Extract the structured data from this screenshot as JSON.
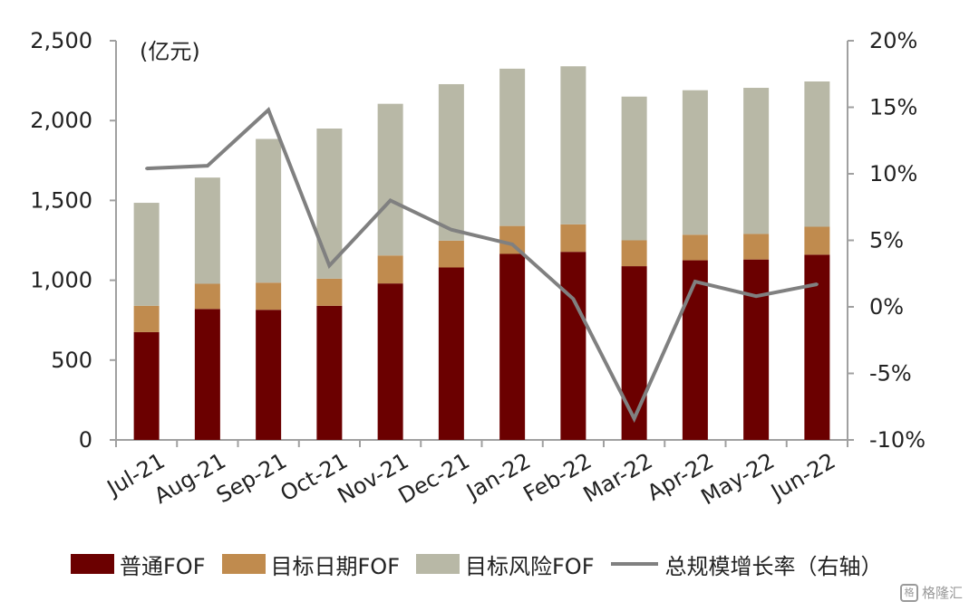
{
  "chart_data": {
    "type": "bar",
    "stacked": true,
    "unit_label": "(亿元)",
    "categories": [
      "Jul-21",
      "Aug-21",
      "Sep-21",
      "Oct-21",
      "Nov-21",
      "Dec-21",
      "Jan-22",
      "Feb-22",
      "Mar-22",
      "Apr-22",
      "May-22",
      "Jun-22"
    ],
    "series": [
      {
        "name": "普通FOF",
        "color": "#6b0000",
        "values": [
          675,
          820,
          815,
          840,
          980,
          1080,
          1165,
          1178,
          1088,
          1125,
          1130,
          1160
        ]
      },
      {
        "name": "目标日期FOF",
        "color": "#c08b4e",
        "values": [
          165,
          158,
          170,
          170,
          175,
          168,
          175,
          172,
          162,
          160,
          160,
          175
        ]
      },
      {
        "name": "目标风险FOF",
        "color": "#b8b8a6",
        "values": [
          645,
          665,
          900,
          940,
          950,
          980,
          985,
          990,
          900,
          905,
          915,
          910
        ]
      }
    ],
    "line_series": {
      "name": "总规模增长率（右轴）",
      "color": "#808080",
      "values": [
        10.4,
        10.6,
        14.8,
        3.1,
        8.0,
        5.8,
        4.7,
        0.6,
        -8.4,
        1.9,
        0.8,
        1.7
      ]
    },
    "left_axis": {
      "ylim": [
        0,
        2500
      ],
      "ticks": [
        0,
        500,
        1000,
        1500,
        2000,
        2500
      ],
      "tick_labels": [
        "0",
        "500",
        "1,000",
        "1,500",
        "2,000",
        "2,500"
      ]
    },
    "right_axis": {
      "ylim": [
        -10,
        20
      ],
      "ticks": [
        -10,
        -5,
        0,
        5,
        10,
        15,
        20
      ],
      "tick_labels": [
        "-10%",
        "-5%",
        "0%",
        "5%",
        "10%",
        "15%",
        "20%"
      ]
    },
    "legend_position": "bottom",
    "grid": false
  },
  "watermark": {
    "icon": "格",
    "text": "格隆汇"
  }
}
